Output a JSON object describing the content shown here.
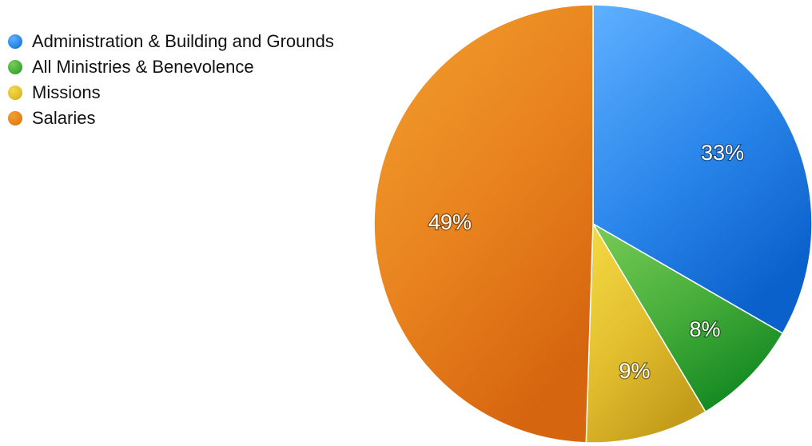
{
  "chart_data": {
    "type": "pie",
    "title": "",
    "legend_position": "top-left",
    "categories": [
      "Administration & Building and Grounds",
      "All Ministries & Benevolence",
      "Missions",
      "Salaries"
    ],
    "values": [
      33,
      8,
      9,
      49
    ],
    "labels": [
      "33%",
      "8%",
      "9%",
      "49%"
    ],
    "colors": [
      "#2a86ea",
      "#46ad3a",
      "#e2be2e",
      "#e8821e"
    ],
    "highlight_colors": [
      "#5fb0ff",
      "#78cc56",
      "#f4da45",
      "#f2a02e"
    ],
    "shadow_colors": [
      "#0b61cc",
      "#158a23",
      "#c39c1a",
      "#d6650f"
    ]
  }
}
